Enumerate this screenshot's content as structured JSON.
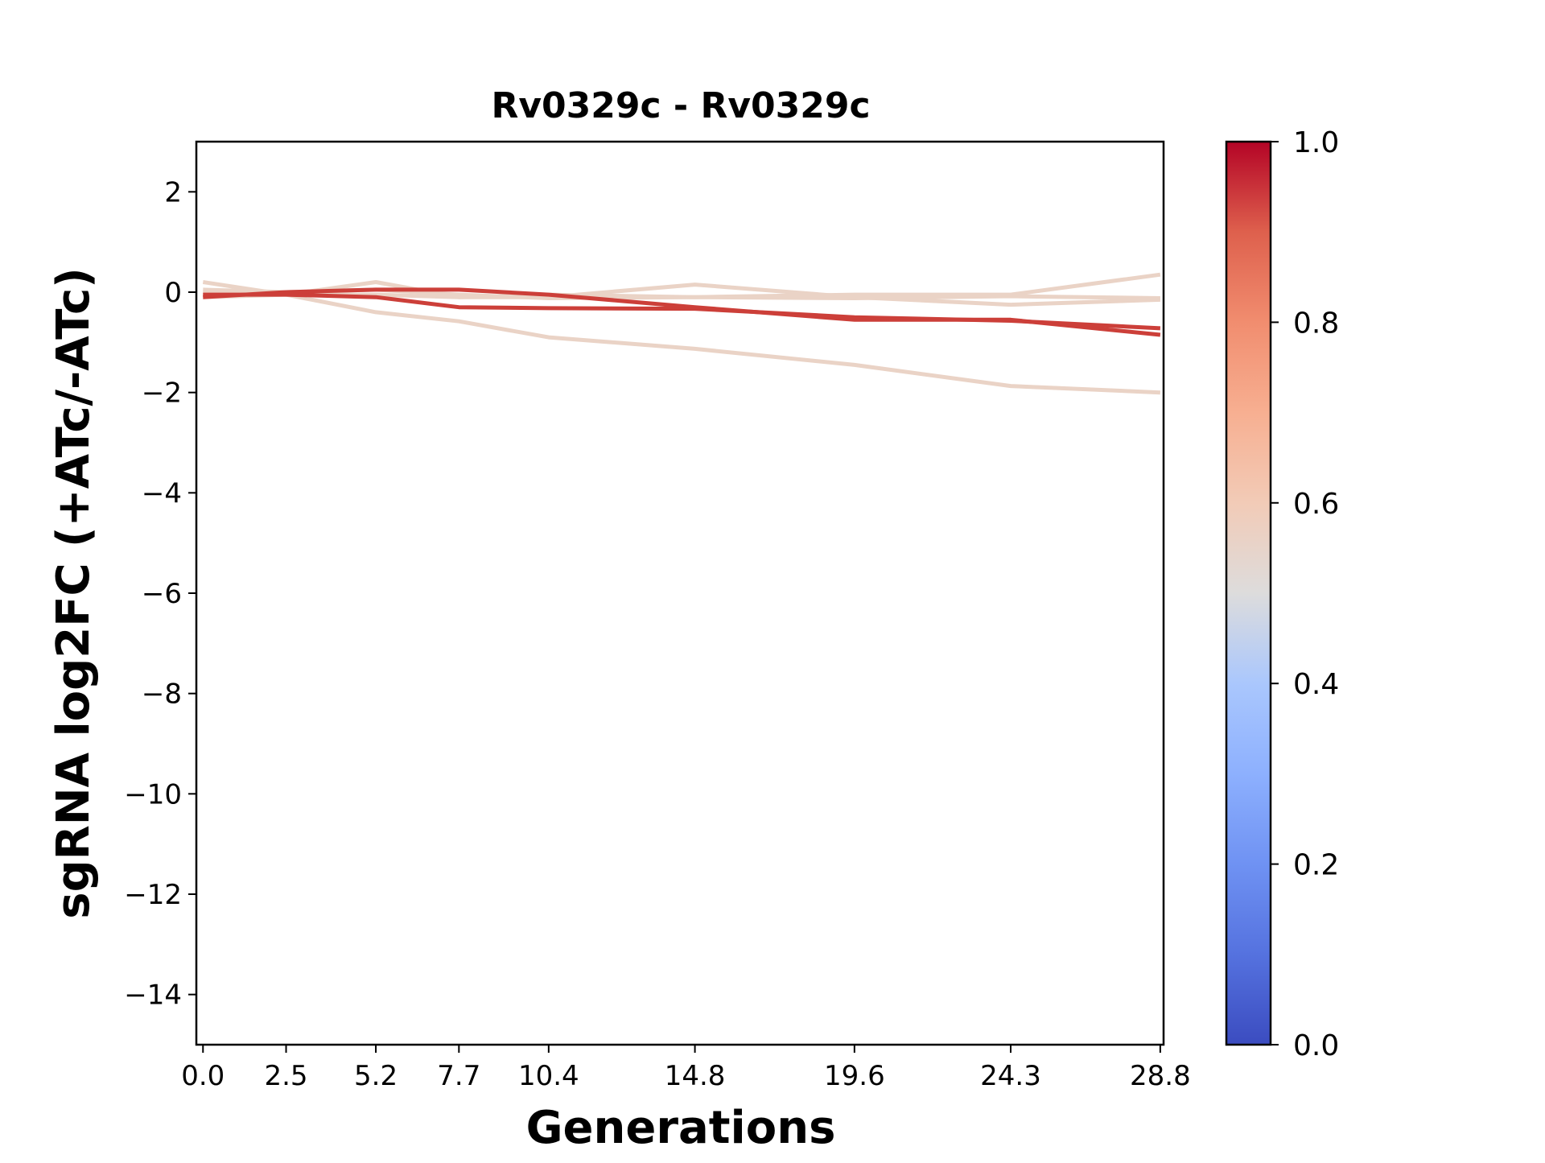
{
  "chart_data": {
    "type": "line",
    "title": "Rv0329c - Rv0329c",
    "xlabel": "Generations",
    "ylabel": "sgRNA log2FC (+ATc/-ATc)",
    "x": [
      0.0,
      2.5,
      5.2,
      7.7,
      10.4,
      14.8,
      19.6,
      24.3,
      28.8
    ],
    "x_tick_labels": [
      "0.0",
      "2.5",
      "5.2",
      "7.7",
      "10.4",
      "14.8",
      "19.6",
      "24.3",
      "28.8"
    ],
    "xlim": [
      -0.2,
      28.9
    ],
    "ylim": [
      -15,
      3
    ],
    "y_ticks": [
      2,
      0,
      -2,
      -4,
      -6,
      -8,
      -10,
      -12,
      -14
    ],
    "y_tick_labels": [
      "2",
      "0",
      "−2",
      "−4",
      "−6",
      "−8",
      "−10",
      "−12",
      "−14"
    ],
    "grid": false,
    "colorbar": {
      "colormap": "coolwarm",
      "range": [
        0.0,
        1.0
      ],
      "ticks": [
        0.0,
        0.2,
        0.4,
        0.6,
        0.8,
        1.0
      ],
      "tick_labels": [
        "0.0",
        "0.2",
        "0.4",
        "0.6",
        "0.8",
        "1.0"
      ]
    },
    "series": [
      {
        "color_value": 0.6,
        "color": "#ead3c6",
        "values": [
          0.2,
          -0.05,
          -0.4,
          -0.58,
          -0.9,
          -1.13,
          -1.45,
          -1.87,
          -2.0
        ]
      },
      {
        "color_value": 0.6,
        "color": "#ead3c6",
        "values": [
          0.0,
          -0.05,
          0.2,
          -0.1,
          -0.1,
          0.15,
          -0.1,
          -0.25,
          -0.15
        ]
      },
      {
        "color_value": 0.6,
        "color": "#ead3c6",
        "values": [
          0.05,
          0.0,
          0.05,
          -0.05,
          -0.12,
          -0.1,
          -0.05,
          -0.05,
          0.35
        ]
      },
      {
        "color_value": 0.6,
        "color": "#ead3c6",
        "values": [
          -0.1,
          -0.05,
          -0.05,
          -0.1,
          -0.05,
          -0.1,
          -0.12,
          -0.08,
          -0.12
        ]
      },
      {
        "color_value": 0.92,
        "color": "#cc3f39",
        "values": [
          -0.1,
          0.0,
          0.05,
          0.05,
          -0.05,
          -0.3,
          -0.55,
          -0.55,
          -0.85
        ]
      },
      {
        "color_value": 0.92,
        "color": "#cc3f39",
        "values": [
          -0.05,
          -0.05,
          -0.1,
          -0.3,
          -0.32,
          -0.33,
          -0.5,
          -0.57,
          -0.72
        ]
      }
    ]
  }
}
